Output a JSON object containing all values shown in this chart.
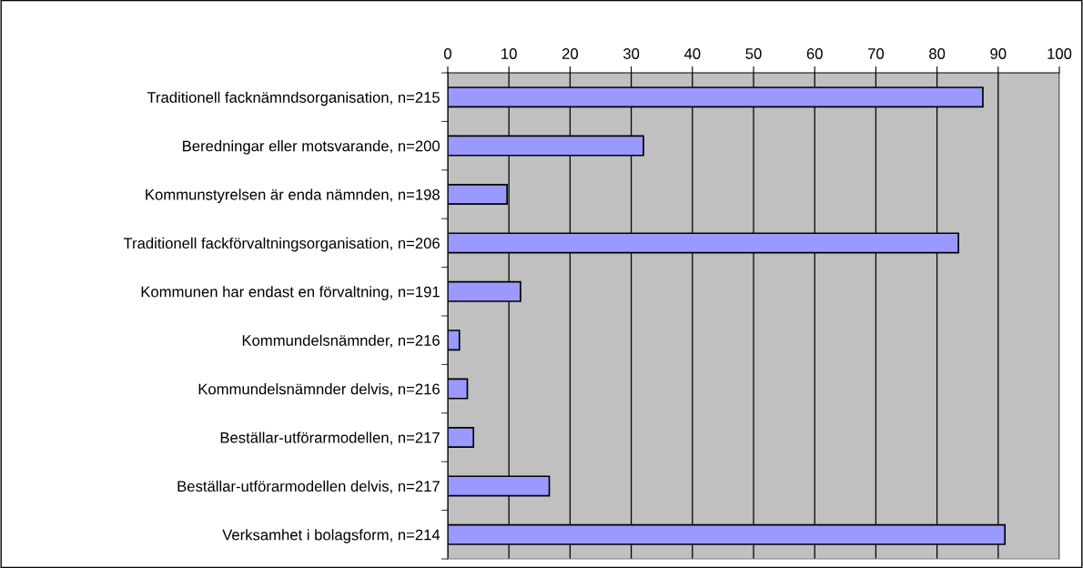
{
  "chart_data": {
    "type": "bar",
    "orientation": "horizontal",
    "categories": [
      "Traditionell facknämndsorganisation, n=215",
      "Beredningar eller motsvarande, n=200",
      "Kommunstyrelsen är enda nämnden, n=198",
      "Traditionell fackförvaltningsorganisation, n=206",
      "Kommunen har endast en förvaltning, n=191",
      "Kommundelsnämnder, n=216",
      "Kommundelsnämnder delvis, n=216",
      "Beställar-utförarmodellen, n=217",
      "Beställar-utförarmodellen delvis, n=217",
      "Verksamhet i bolagsform, n=214"
    ],
    "values": [
      87.5,
      32.0,
      9.7,
      83.5,
      11.9,
      1.9,
      3.2,
      4.2,
      16.6,
      91.1
    ],
    "color": "#9999ff",
    "xlim": [
      0,
      100
    ],
    "xticks": [
      0,
      10,
      20,
      30,
      40,
      50,
      60,
      70,
      80,
      90,
      100
    ],
    "grid": "x"
  }
}
